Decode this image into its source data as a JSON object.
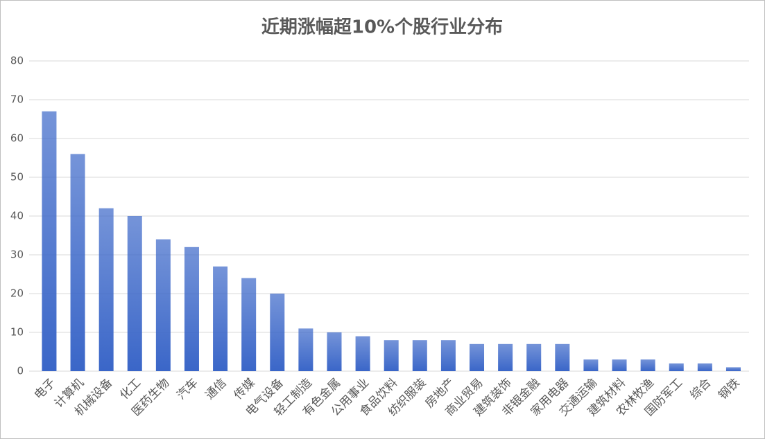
{
  "chart_data": {
    "type": "bar",
    "title": "近期涨幅超10%个股行业分布",
    "categories": [
      "电子",
      "计算机",
      "机械设备",
      "化工",
      "医药生物",
      "汽车",
      "通信",
      "传媒",
      "电气设备",
      "轻工制造",
      "有色金属",
      "公用事业",
      "食品饮料",
      "纺织服装",
      "房地产",
      "商业贸易",
      "建筑装饰",
      "非银金融",
      "家用电器",
      "交通运输",
      "建筑材料",
      "农林牧渔",
      "国防军工",
      "综合",
      "钢铁"
    ],
    "values": [
      67,
      56,
      42,
      40,
      34,
      32,
      27,
      24,
      20,
      11,
      10,
      9,
      8,
      8,
      8,
      7,
      7,
      7,
      7,
      3,
      3,
      3,
      2,
      2,
      1
    ],
    "color": "#3a66c8",
    "ylim": [
      0,
      80
    ],
    "yticks": [
      0,
      10,
      20,
      30,
      40,
      50,
      60,
      70,
      80
    ],
    "grid": true
  }
}
